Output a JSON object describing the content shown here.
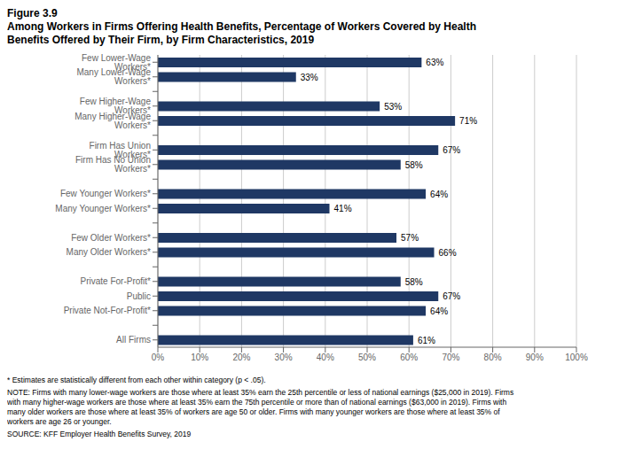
{
  "chart_data": {
    "type": "bar",
    "orientation": "horizontal",
    "title": "Figure 3.9",
    "subtitle": "Among Workers in Firms Offering Health Benefits, Percentage of Workers Covered by Health\nBenefits Offered by Their Firm, by Firm Characteristics, 2019",
    "categories": [
      "Few Lower-Wage Workers*",
      "Many Lower-Wage Workers*",
      null,
      "Few Higher-Wage Workers*",
      "Many Higher-Wage Workers*",
      null,
      "Firm Has Union Workers*",
      "Firm Has No Union Workers*",
      null,
      "Few Younger Workers*",
      "Many Younger Workers*",
      null,
      "Few Older Workers*",
      "Many Older Workers*",
      null,
      "Private For-Profit*",
      "Public",
      "Private Not-For-Profit*",
      null,
      "All Firms"
    ],
    "values": [
      63,
      33,
      null,
      53,
      71,
      null,
      67,
      58,
      null,
      64,
      41,
      null,
      57,
      66,
      null,
      58,
      67,
      64,
      null,
      61
    ],
    "value_labels": [
      "63%",
      "33%",
      null,
      "53%",
      "71%",
      null,
      "67%",
      "58%",
      null,
      "64%",
      "41%",
      null,
      "57%",
      "66%",
      null,
      "58%",
      "67%",
      "64%",
      null,
      "61%"
    ],
    "data_labels": true,
    "color": "#1f3864",
    "xlim": [
      0,
      100
    ],
    "xticks": [
      {
        "value": 0,
        "label": "0%"
      },
      {
        "value": 10,
        "label": "10%"
      },
      {
        "value": 20,
        "label": "20%"
      },
      {
        "value": 30,
        "label": "30%"
      },
      {
        "value": 40,
        "label": "40%"
      },
      {
        "value": 50,
        "label": "50%"
      },
      {
        "value": 60,
        "label": "60%"
      },
      {
        "value": 70,
        "label": "70%"
      },
      {
        "value": 80,
        "label": "80%"
      },
      {
        "value": 90,
        "label": "90%"
      },
      {
        "value": 100,
        "label": "100%"
      }
    ],
    "grid": true,
    "annotations": [
      "* Estimates are statistically different from each other within category (p < .05).",
      "NOTE: Firms with many lower-wage workers are those where at least 35% earn the 25th percentile or less of national earnings ($25,000 in 2019). Firms\nwith many higher-wage workers are those where at least 35% earn the 75th percentile or more than of national earnings ($63,000 in 2019). Firms with\nmany older workers are those where at least 35% of workers are age 50 or older. Firms with many younger workers are those where at least 35% of\nworkers are age 26 or younger.",
      "SOURCE: KFF Employer Health Benefits Survey, 2019"
    ]
  }
}
